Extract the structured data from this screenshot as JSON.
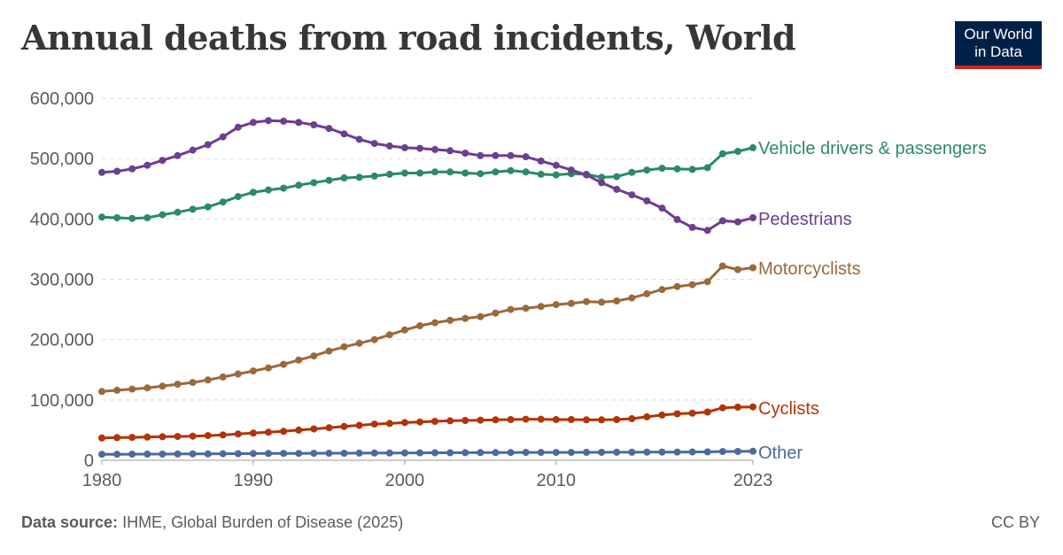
{
  "title": "Annual deaths from road incidents, World",
  "logo": {
    "line1": "Our World",
    "line2": "in Data",
    "bg": "#002147",
    "accent": "#ce261e"
  },
  "source": {
    "label": "Data source:",
    "text": "IHME, Global Burden of Disease (2025)"
  },
  "license": "CC BY",
  "chart_data": {
    "type": "line",
    "title": "Annual deaths from road incidents, World",
    "xlabel": "",
    "ylabel": "",
    "xlim": [
      1980,
      2023
    ],
    "ylim": [
      0,
      600000
    ],
    "grid": "horizontal dashed",
    "legend": "labels at line ends (right)",
    "x_ticks": [
      {
        "value": 1980,
        "label": "1980"
      },
      {
        "value": 1990,
        "label": "1990"
      },
      {
        "value": 2000,
        "label": "2000"
      },
      {
        "value": 2010,
        "label": "2010"
      },
      {
        "value": 2023,
        "label": "2023"
      }
    ],
    "y_ticks": [
      {
        "value": 0,
        "label": "0"
      },
      {
        "value": 100000,
        "label": "100,000"
      },
      {
        "value": 200000,
        "label": "200,000"
      },
      {
        "value": 300000,
        "label": "300,000"
      },
      {
        "value": 400000,
        "label": "400,000"
      },
      {
        "value": 500000,
        "label": "500,000"
      },
      {
        "value": 600000,
        "label": "600,000"
      }
    ],
    "x": [
      1980,
      1981,
      1982,
      1983,
      1984,
      1985,
      1986,
      1987,
      1988,
      1989,
      1990,
      1991,
      1992,
      1993,
      1994,
      1995,
      1996,
      1997,
      1998,
      1999,
      2000,
      2001,
      2002,
      2003,
      2004,
      2005,
      2006,
      2007,
      2008,
      2009,
      2010,
      2011,
      2012,
      2013,
      2014,
      2015,
      2016,
      2017,
      2018,
      2019,
      2020,
      2021,
      2022,
      2023
    ],
    "series": [
      {
        "name": "Vehicle drivers & passengers",
        "color": "#2a8a6a",
        "values": [
          403000,
          402000,
          401000,
          402000,
          407000,
          411000,
          416000,
          420000,
          428000,
          437000,
          444000,
          448000,
          451000,
          456000,
          460000,
          464000,
          468000,
          469000,
          471000,
          474000,
          476000,
          476000,
          478000,
          478000,
          476000,
          475000,
          478000,
          480000,
          478000,
          474000,
          473000,
          475000,
          474000,
          469000,
          470000,
          477000,
          481000,
          484000,
          483000,
          482000,
          485000,
          508000,
          512000,
          518000
        ]
      },
      {
        "name": "Pedestrians",
        "color": "#6d3e91",
        "values": [
          477000,
          479000,
          483000,
          489000,
          497000,
          505000,
          514000,
          523000,
          536000,
          552000,
          560000,
          563000,
          562000,
          560000,
          556000,
          550000,
          541000,
          532000,
          525000,
          521000,
          518000,
          517000,
          515000,
          513000,
          509000,
          505000,
          505000,
          505000,
          503000,
          496000,
          489000,
          481000,
          473000,
          460000,
          449000,
          440000,
          430000,
          418000,
          399000,
          386000,
          381000,
          397000,
          395000,
          402000
        ]
      },
      {
        "name": "Motorcyclists",
        "color": "#9a6a3a",
        "values": [
          114000,
          116000,
          118000,
          120000,
          123000,
          126000,
          129000,
          133000,
          138000,
          143000,
          148000,
          153000,
          159000,
          166000,
          173000,
          181000,
          188000,
          194000,
          200000,
          208000,
          216000,
          223000,
          228000,
          232000,
          235000,
          238000,
          244000,
          250000,
          252000,
          255000,
          258000,
          260000,
          263000,
          262000,
          264000,
          269000,
          276000,
          283000,
          288000,
          291000,
          296000,
          322000,
          316000,
          319000
        ]
      },
      {
        "name": "Cyclists",
        "color": "#b13507",
        "values": [
          37000,
          37500,
          38000,
          38500,
          39000,
          39500,
          40000,
          41000,
          42000,
          43500,
          45000,
          46500,
          48000,
          50000,
          52000,
          54000,
          56000,
          58000,
          60000,
          61000,
          62500,
          63500,
          64500,
          65500,
          66000,
          66500,
          67000,
          67500,
          68000,
          68000,
          67500,
          67500,
          67000,
          67000,
          67500,
          69000,
          72000,
          75000,
          77000,
          78000,
          80000,
          87000,
          88000,
          88500
        ]
      },
      {
        "name": "Other",
        "color": "#4c6a9c",
        "values": [
          10000,
          10000,
          10100,
          10200,
          10300,
          10400,
          10500,
          10600,
          10800,
          11000,
          11200,
          11300,
          11400,
          11500,
          11600,
          11700,
          11800,
          11900,
          12000,
          12100,
          12200,
          12300,
          12400,
          12500,
          12600,
          12700,
          12800,
          12900,
          13000,
          13000,
          13100,
          13100,
          13200,
          13200,
          13300,
          13400,
          13500,
          13600,
          13700,
          13800,
          13900,
          14500,
          14600,
          15000
        ]
      }
    ]
  }
}
